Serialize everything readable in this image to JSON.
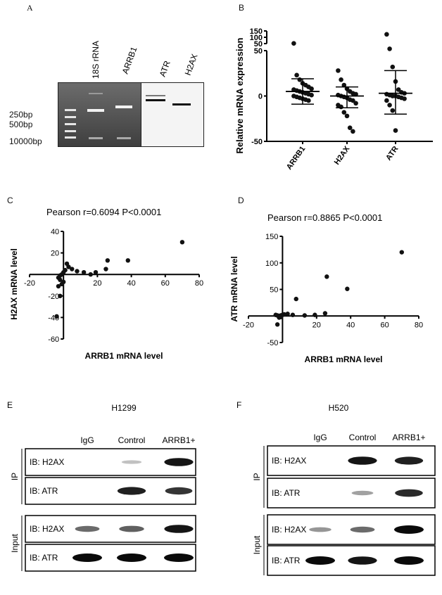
{
  "panels": {
    "A": {
      "letter": "A",
      "lanes": [
        "18S rRNA",
        "ARRB1",
        "ATR",
        "H2AX"
      ],
      "ladder": [
        "250bp",
        "500bp",
        "10000bp"
      ]
    },
    "B": {
      "letter": "B",
      "chart_data": {
        "type": "scatter",
        "ylabel": "Relative mRNA expression",
        "categories": [
          "ARRB1",
          "H2AX",
          "ATR"
        ],
        "y_ticks_lower": [
          "-50",
          "0",
          "50"
        ],
        "y_ticks_upper": [
          "50",
          "100",
          "150"
        ],
        "axis_break": true,
        "series": [
          {
            "category": "ARRB1",
            "mean": 5,
            "sd_upper": 19,
            "sd_lower": -9,
            "values": [
              58,
              23,
              18,
              14,
              12,
              10,
              8,
              7,
              6,
              5,
              4,
              3,
              2,
              1,
              0,
              -1,
              -2,
              -3,
              -4,
              -5
            ]
          },
          {
            "category": "H2AX",
            "mean": 0,
            "sd_upper": 10,
            "sd_lower": -13,
            "values": [
              28,
              18,
              12,
              8,
              5,
              3,
              2,
              1,
              0,
              -1,
              -2,
              -4,
              -5,
              -8,
              -10,
              -12,
              -18,
              -22,
              -35,
              -39
            ]
          },
          {
            "category": "ATR",
            "mean": 3,
            "sd_upper": 28,
            "sd_lower": -20,
            "values": [
              68,
              52,
              32,
              16,
              7,
              4,
              3,
              2,
              1,
              0,
              0,
              -1,
              -2,
              -3,
              -5,
              -10,
              -16,
              -38
            ]
          }
        ]
      }
    },
    "C": {
      "letter": "C",
      "chart_data": {
        "type": "scatter",
        "title": "Pearson r=0.6094 P<0.0001",
        "xlabel": "ARRB1 mRNA level",
        "ylabel": "H2AX mRNA level",
        "xlim": [
          -20,
          80
        ],
        "ylim": [
          -60,
          40
        ],
        "x_ticks": [
          "-20",
          "20",
          "40",
          "60",
          "80"
        ],
        "y_ticks": [
          "40",
          "20",
          "-20",
          "-40",
          "-60"
        ],
        "points": [
          [
            70,
            30
          ],
          [
            38,
            13
          ],
          [
            26,
            13
          ],
          [
            25,
            5
          ],
          [
            19,
            2
          ],
          [
            16,
            0
          ],
          [
            12,
            2
          ],
          [
            8,
            3
          ],
          [
            5,
            5
          ],
          [
            3,
            7
          ],
          [
            2,
            10
          ],
          [
            1,
            4
          ],
          [
            0,
            2
          ],
          [
            -1,
            0
          ],
          [
            -2,
            -1
          ],
          [
            -3,
            -3
          ],
          [
            -2,
            -5
          ],
          [
            0,
            -7
          ],
          [
            -1,
            -9
          ],
          [
            -3,
            -11
          ],
          [
            -2,
            -20
          ],
          [
            -4,
            -39
          ]
        ]
      }
    },
    "D": {
      "letter": "D",
      "chart_data": {
        "type": "scatter",
        "title": "Pearson r=0.8865 P<0.0001",
        "xlabel": "ARRB1 mRNA level",
        "ylabel": "ATR mRNA level",
        "xlim": [
          -20,
          80
        ],
        "ylim": [
          -50,
          150
        ],
        "x_ticks": [
          "-20",
          "20",
          "40",
          "60",
          "80"
        ],
        "y_ticks": [
          "150",
          "100",
          "50",
          "-50"
        ],
        "points": [
          [
            70,
            120
          ],
          [
            26,
            74
          ],
          [
            38,
            51
          ],
          [
            8,
            32
          ],
          [
            25,
            5
          ],
          [
            19,
            2
          ],
          [
            13,
            1
          ],
          [
            6,
            2
          ],
          [
            3,
            4
          ],
          [
            1,
            3
          ],
          [
            0,
            2
          ],
          [
            -1,
            1
          ],
          [
            -2,
            0
          ],
          [
            -3,
            1
          ],
          [
            -4,
            2
          ],
          [
            -1,
            -2
          ],
          [
            -2,
            -3
          ],
          [
            -3,
            -16
          ]
        ]
      }
    },
    "E": {
      "letter": "E",
      "cell_line": "H1299",
      "columns": [
        "IgG",
        "Control",
        "ARRB1+"
      ],
      "ip_label": "IP",
      "input_label": "Input",
      "blots": [
        {
          "label": "IB: H2AX",
          "band": [
            0.0,
            0.15,
            0.95
          ]
        },
        {
          "label": "IB: ATR",
          "band": [
            0.0,
            0.9,
            0.8
          ]
        },
        {
          "label": "IB: H2AX",
          "band": [
            0.55,
            0.6,
            0.95
          ]
        },
        {
          "label": "IB: ATR",
          "band": [
            1.0,
            1.0,
            1.0
          ]
        }
      ]
    },
    "F": {
      "letter": "F",
      "cell_line": "H520",
      "columns": [
        "IgG",
        "Control",
        "ARRB1+"
      ],
      "ip_label": "IP",
      "input_label": "Input",
      "blots": [
        {
          "label": "IB: H2AX",
          "band": [
            0.0,
            0.95,
            0.9
          ]
        },
        {
          "label": "IB: ATR",
          "band": [
            0.0,
            0.3,
            0.85
          ]
        },
        {
          "label": "IB: H2AX",
          "band": [
            0.35,
            0.55,
            1.0
          ]
        },
        {
          "label": "IB: ATR",
          "band": [
            1.0,
            0.95,
            1.0
          ]
        }
      ]
    }
  }
}
